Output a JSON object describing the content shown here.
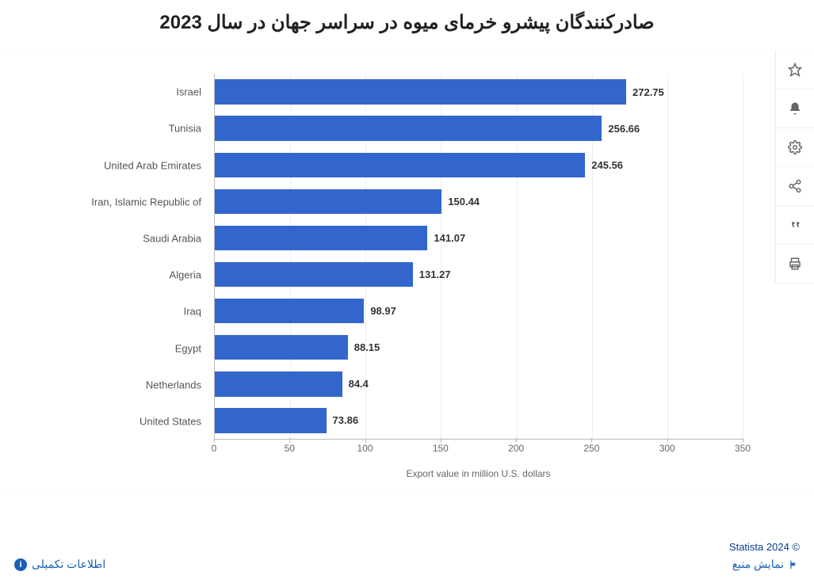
{
  "title": "صادرکنندگان پیشرو خرمای میوه در سراسر جهان در سال 2023",
  "chart": {
    "type": "bar-horizontal",
    "bar_color": "#3366cc",
    "grid_color": "#eeeeee",
    "axis_color": "#bbbbbb",
    "background_color": "#ffffff",
    "value_fontsize": 13,
    "label_fontsize": 13,
    "tick_fontsize": 12,
    "x_axis_label": "Export value in million U.S. dollars",
    "xlim": [
      0,
      350
    ],
    "xtick_step": 50,
    "xticks": [
      "0",
      "50",
      "100",
      "150",
      "200",
      "250",
      "300",
      "350"
    ],
    "categories": [
      "Israel",
      "Tunisia",
      "United Arab Emirates",
      "Iran, Islamic Republic of",
      "Saudi Arabia",
      "Algeria",
      "Iraq",
      "Egypt",
      "Netherlands",
      "United States"
    ],
    "values": [
      272.75,
      256.66,
      245.56,
      150.44,
      141.07,
      131.27,
      98.97,
      88.15,
      84.4,
      73.86
    ],
    "value_labels": [
      "272.75",
      "256.66",
      "245.56",
      "150.44",
      "141.07",
      "131.27",
      "98.97",
      "88.15",
      "84.4",
      "73.86"
    ]
  },
  "toolbar": {
    "items": [
      {
        "name": "favorite-icon",
        "title": "Favorite"
      },
      {
        "name": "notify-icon",
        "title": "Notify"
      },
      {
        "name": "settings-icon",
        "title": "Settings"
      },
      {
        "name": "share-icon",
        "title": "Share"
      },
      {
        "name": "quote-icon",
        "title": "Cite"
      },
      {
        "name": "print-icon",
        "title": "Print"
      }
    ]
  },
  "footer": {
    "copyright": "© Statista 2024",
    "source_link": "نمایش منبع",
    "info_link": "اطلاعات تکمیلی"
  }
}
